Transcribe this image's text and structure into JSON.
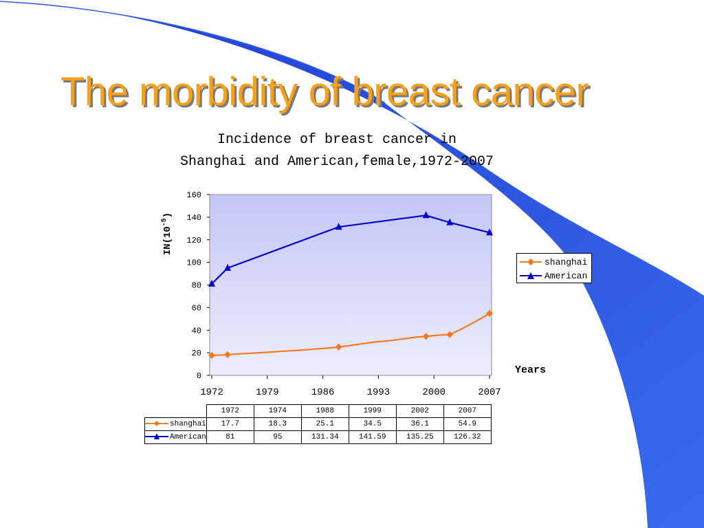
{
  "slide": {
    "title": "The morbidity of breast cancer"
  },
  "chart_data": {
    "type": "line",
    "title_line1": "Incidence of breast cancer in",
    "title_line2": "Shanghai and American,female,1972-2007",
    "ylabel": "IN(10-5)",
    "xlabel": "Years",
    "ylim": [
      0,
      160
    ],
    "yticks": [
      "0",
      "20",
      "40",
      "60",
      "80",
      "100",
      "120",
      "140",
      "160"
    ],
    "xlim": [
      1972,
      2007
    ],
    "xticks": [
      "1972",
      "1979",
      "1986",
      "1993",
      "2000",
      "2007"
    ],
    "grid": false,
    "legend_position": "right",
    "series": [
      {
        "name": "shanghai",
        "color": "#f47920",
        "marker": "diamond",
        "markers_x": [
          1972,
          1974,
          1988,
          1999,
          2002,
          2007
        ],
        "markers_y": [
          17.7,
          18.3,
          25.1,
          34.5,
          36.1,
          54.9
        ],
        "x": [
          1972,
          1973,
          1974,
          1975,
          1976,
          1977,
          1978,
          1979,
          1980,
          1981,
          1982,
          1983,
          1984,
          1985,
          1986,
          1987,
          1988,
          1989,
          1990,
          1991,
          1992,
          1993,
          1994,
          1995,
          1996,
          1997,
          1998,
          1999,
          2000,
          2001,
          2002,
          2003,
          2004,
          2005,
          2006,
          2007
        ],
        "y": [
          17.7,
          18.0,
          18.3,
          18.9,
          19.2,
          19.6,
          20.0,
          20.4,
          20.9,
          21.4,
          21.8,
          22.2,
          22.7,
          23.3,
          23.8,
          24.4,
          25.1,
          26.0,
          27.0,
          28.0,
          29.0,
          29.8,
          30.4,
          31.2,
          32.2,
          33.2,
          34.0,
          34.5,
          35.2,
          35.8,
          36.1,
          39.5,
          43.0,
          46.8,
          50.7,
          54.9
        ]
      },
      {
        "name": "American",
        "color": "#0000cc",
        "marker": "triangle",
        "markers_x": [
          1972,
          1974,
          1988,
          1999,
          2002,
          2007
        ],
        "markers_y": [
          81,
          95,
          131.34,
          141.59,
          135.25,
          126.32
        ],
        "x": [
          1972,
          1974,
          1988,
          1999,
          2002,
          2007
        ],
        "y": [
          81,
          95,
          131.34,
          141.59,
          135.25,
          126.32
        ]
      }
    ],
    "table": {
      "years": [
        "1972",
        "1974",
        "1988",
        "1999",
        "2002",
        "2007"
      ],
      "rows": [
        {
          "label": "shanghai",
          "values": [
            "17.7",
            "18.3",
            "25.1",
            "34.5",
            "36.1",
            "54.9"
          ]
        },
        {
          "label": "American",
          "values": [
            "81",
            "95",
            "131.34",
            "141.59",
            "135.25",
            "126.32"
          ]
        }
      ]
    }
  },
  "decoration": {
    "swoosh_color": "#2b55e6",
    "title_color": "#f7a11a",
    "plot_bg_top": "#c4c6f6",
    "plot_bg_bottom": "#ededfc"
  }
}
